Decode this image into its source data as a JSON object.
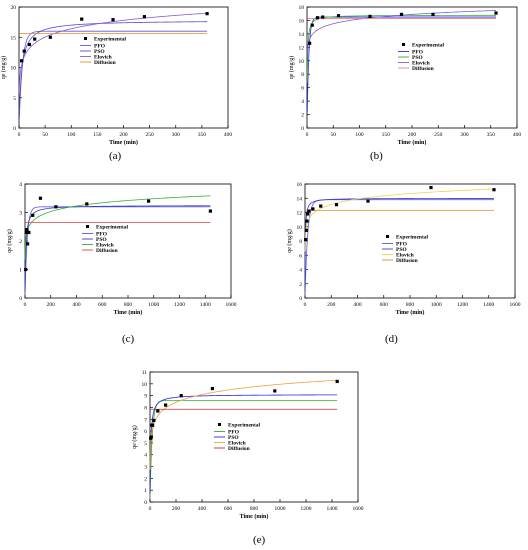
{
  "figure": {
    "panel_labels": [
      "(a)",
      "(b)",
      "(c)",
      "(d)",
      "(e)"
    ]
  },
  "chart_data": [
    {
      "panel": "(a)",
      "type": "scatter",
      "xlabel": "Time (min)",
      "ylabel": "qe (mg/g)",
      "xlim": [
        0,
        400
      ],
      "ylim": [
        0,
        20
      ],
      "xticks": [
        0,
        50,
        100,
        150,
        200,
        250,
        300,
        350,
        400
      ],
      "yticks": [
        0,
        5,
        10,
        15,
        20
      ],
      "legend_position": "center",
      "experimental": {
        "name": "Experimental",
        "x": [
          5,
          10,
          20,
          30,
          60,
          120,
          180,
          240,
          360
        ],
        "y": [
          11.1,
          12.7,
          13.8,
          14.7,
          15.0,
          18.0,
          17.9,
          18.4,
          18.9
        ]
      },
      "models": [
        {
          "name": "PFO",
          "color": "#5b5bd6",
          "kind": "pfo",
          "qe": 16.0,
          "k": 0.16
        },
        {
          "name": "PSO",
          "color": "#4f4fd0",
          "kind": "pso",
          "qe": 17.8,
          "k": 0.012
        },
        {
          "name": "Elovich",
          "color": "#8a5ad6",
          "kind": "elovich",
          "a": 7.2,
          "b": 2.0
        },
        {
          "name": "Diffusion",
          "color": "#f08a24",
          "kind": "flat",
          "q": 15.6
        }
      ]
    },
    {
      "panel": "(b)",
      "type": "scatter",
      "xlabel": "Time (min)",
      "ylabel": "qe (mg/g)",
      "xlim": [
        0,
        400
      ],
      "ylim": [
        0,
        18
      ],
      "xticks": [
        0,
        50,
        100,
        150,
        200,
        250,
        300,
        350,
        400
      ],
      "yticks": [
        0,
        2,
        4,
        6,
        8,
        10,
        12,
        14,
        16,
        18
      ],
      "legend_position": "center",
      "experimental": {
        "name": "Experimental",
        "x": [
          5,
          10,
          20,
          30,
          60,
          120,
          180,
          240,
          360
        ],
        "y": [
          12.6,
          15.3,
          16.4,
          16.5,
          16.7,
          16.6,
          16.9,
          16.9,
          17.1
        ]
      },
      "models": [
        {
          "name": "PFO",
          "color": "#2a2ae0",
          "kind": "pfo",
          "qe": 16.5,
          "k": 0.3
        },
        {
          "name": "PSO",
          "color": "#33b233",
          "kind": "pso",
          "qe": 16.8,
          "k": 0.08
        },
        {
          "name": "Elovich",
          "color": "#8a5ad6",
          "kind": "elovich",
          "a": 11.6,
          "b": 1.0
        },
        {
          "name": "Diffusion",
          "color": "#f08080",
          "kind": "flat",
          "q": 16.3
        }
      ]
    },
    {
      "panel": "(c)",
      "type": "scatter",
      "xlabel": "Time (min)",
      "ylabel": "qe (mg/g)",
      "xlim": [
        0,
        1600
      ],
      "ylim": [
        0,
        4
      ],
      "xticks": [
        0,
        200,
        400,
        600,
        800,
        1000,
        1200,
        1400,
        1600
      ],
      "yticks": [
        0,
        1,
        2,
        3,
        4
      ],
      "legend_position": "right",
      "experimental": {
        "name": "Experimental",
        "x": [
          5,
          10,
          15,
          20,
          30,
          60,
          120,
          240,
          480,
          960,
          1440
        ],
        "y": [
          1.0,
          2.3,
          2.4,
          1.9,
          2.3,
          2.9,
          3.5,
          3.2,
          3.3,
          3.4,
          3.05
        ]
      },
      "models": [
        {
          "name": "PFO",
          "color": "#5b5bd6",
          "kind": "pfo",
          "qe": 3.2,
          "k": 0.06
        },
        {
          "name": "PSO",
          "color": "#3a3acc",
          "kind": "pso",
          "qe": 3.25,
          "k": 0.05
        },
        {
          "name": "Elovich",
          "color": "#33b233",
          "kind": "elovich",
          "a": 1.55,
          "b": 0.28
        },
        {
          "name": "Diffusion",
          "color": "#e04040",
          "kind": "flat",
          "q": 2.65
        }
      ]
    },
    {
      "panel": "(d)",
      "type": "scatter",
      "xlabel": "Time (min)",
      "ylabel": "qe (mg/g)",
      "xlim": [
        0,
        1600
      ],
      "ylim": [
        0,
        16
      ],
      "xticks": [
        0,
        200,
        400,
        600,
        800,
        1000,
        1200,
        1400,
        1600
      ],
      "yticks": [
        0,
        2,
        4,
        6,
        8,
        10,
        12,
        14,
        16
      ],
      "legend_position": "right",
      "experimental": {
        "name": "Experimental",
        "x": [
          5,
          10,
          15,
          20,
          30,
          60,
          120,
          240,
          480,
          960,
          1440
        ],
        "y": [
          8.2,
          9.5,
          10.8,
          11.8,
          12.2,
          12.5,
          12.9,
          13.1,
          13.6,
          15.5,
          15.2
        ]
      },
      "models": [
        {
          "name": "PFO",
          "color": "#5b5bd6",
          "kind": "pfo",
          "qe": 13.8,
          "k": 0.05
        },
        {
          "name": "PSO",
          "color": "#3a3acc",
          "kind": "pso",
          "qe": 14.0,
          "k": 0.03
        },
        {
          "name": "Elovich",
          "color": "#e8d84a",
          "kind": "elovich",
          "a": 7.3,
          "b": 1.1
        },
        {
          "name": "Diffusion",
          "color": "#f08a24",
          "kind": "flat",
          "q": 12.3
        }
      ]
    },
    {
      "panel": "(e)",
      "type": "scatter",
      "xlabel": "Time (min)",
      "ylabel": "qe (mg/g)",
      "xlim": [
        0,
        1600
      ],
      "ylim": [
        0,
        11
      ],
      "xticks": [
        0,
        200,
        400,
        600,
        800,
        1000,
        1200,
        1400,
        1600
      ],
      "yticks": [
        0,
        1,
        2,
        3,
        4,
        5,
        6,
        7,
        8,
        9,
        10,
        11
      ],
      "legend_position": "center",
      "experimental": {
        "name": "Experimental",
        "x": [
          5,
          10,
          15,
          20,
          30,
          60,
          120,
          240,
          480,
          960,
          1440
        ],
        "y": [
          5.4,
          5.5,
          6.5,
          6.5,
          6.9,
          7.7,
          8.2,
          9.0,
          9.6,
          9.4,
          10.2
        ]
      },
      "models": [
        {
          "name": "PFO",
          "color": "#33b233",
          "kind": "pfo",
          "qe": 8.6,
          "k": 0.06
        },
        {
          "name": "PSO",
          "color": "#2a2ae0",
          "kind": "pso",
          "qe": 9.1,
          "k": 0.02
        },
        {
          "name": "Elovich",
          "color": "#f0a040",
          "kind": "elovich",
          "a": 3.4,
          "b": 0.95
        },
        {
          "name": "Diffusion",
          "color": "#c03030",
          "kind": "flat",
          "q": 7.85
        }
      ]
    }
  ]
}
